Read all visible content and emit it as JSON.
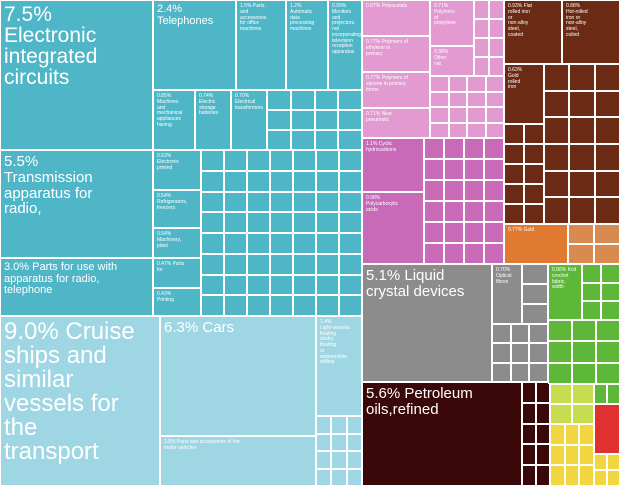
{
  "chart_data": {
    "type": "treemap",
    "title": "",
    "colors": {
      "electronics": "#4fb6c8",
      "electronics_light": "#7fcad8",
      "vehicles": "#9fd6e4",
      "chemicals": "#e39ad0",
      "chemicals_dark": "#c86ab8",
      "minerals_gray": "#8c8c8c",
      "petroleum": "#3a0808",
      "metals": "#6a2a14",
      "gold": "#e07a30",
      "textiles_green": "#5db83a",
      "yellow_green": "#c8dc50",
      "yellow": "#f2d640",
      "red": "#e03030"
    },
    "items": [
      {
        "key": "electronic_ic",
        "pct": 7.5,
        "label": "7.5%\nElectronic\nintegrated\ncircuits",
        "color": "electronics"
      },
      {
        "key": "telephones",
        "pct": 2.4,
        "label": "2.4%\nTelephones",
        "color": "electronics"
      },
      {
        "key": "parts_office",
        "pct": 1.5,
        "label": "1.5% Parts\nand\naccessories\nfor office\nmachines",
        "color": "electronics"
      },
      {
        "key": "auto_data",
        "pct": 1.2,
        "label": "1.2%\nAutomatic\ndata\nprocessing\nmachines",
        "color": "electronics"
      },
      {
        "key": "monitors",
        "pct": 0.99,
        "label": "0.99%\nMonitors\nand\nprojectors,\nnot\nincorporating\ntelevision\nreception\napparatus",
        "color": "electronics"
      },
      {
        "key": "machines_mech",
        "pct": 0.85,
        "label": "0.85%\nMachines\nand\nmechanical\nappliances\nhaving",
        "color": "electronics"
      },
      {
        "key": "electric_storage",
        "pct": 0.74,
        "label": "0.74%\nElectric\nstorage\nbatteries",
        "color": "electronics"
      },
      {
        "key": "electrical_transformers",
        "pct": 0.7,
        "label": "0.70%\nElectrical\ntransformers",
        "color": "electronics"
      },
      {
        "key": "transmission",
        "pct": 5.5,
        "label": "5.5%\nTransmission\napparatus for\nradio,",
        "color": "electronics"
      },
      {
        "key": "electronic_printed",
        "pct": 0.63,
        "label": "0.63%\nElectronic\nprinted",
        "color": "electronics"
      },
      {
        "key": "refrigerators",
        "pct": 0.54,
        "label": "0.54%\nRefrigerators,\nfreezers",
        "color": "electronics"
      },
      {
        "key": "machinery_plant",
        "pct": 0.54,
        "label": "0.54%\nMachinery,\nplant",
        "color": "electronics"
      },
      {
        "key": "parts_for",
        "pct": 0.47,
        "label": "0.47% Parts\nfor",
        "color": "electronics"
      },
      {
        "key": "printing",
        "pct": 0.43,
        "label": "0.43%\nPrinting",
        "color": "electronics"
      },
      {
        "key": "parts_radio",
        "pct": 3.0,
        "label": "3.0% Parts for use with\napparatus for radio,\ntelephone",
        "color": "electronics"
      },
      {
        "key": "cruise_ships",
        "pct": 9.0,
        "label": "9.0% Cruise\nships and\nsimilar\nvessels for\nthe\ntransport",
        "color": "vehicles"
      },
      {
        "key": "cars",
        "pct": 6.3,
        "label": "6.3% Cars",
        "color": "vehicles"
      },
      {
        "key": "light_vessels",
        "pct": 1.4,
        "label": "1.4%\nLight-vessels,\nfloating\ndocks,\nfloating\nor\nsubmersible\ndrilling",
        "color": "vehicles"
      },
      {
        "key": "vehicle_parts",
        "pct": 2.5,
        "label": "2.5% Parts and accessories of the\nmotor vehicles",
        "color": "vehicles"
      },
      {
        "key": "polyacetals",
        "pct": 0.87,
        "label": "0.87% Polyacetals",
        "color": "chemicals"
      },
      {
        "key": "polymers_propylene",
        "pct": 0.71,
        "label": "0.71%\nPolymers\nof\npropylene",
        "color": "chemicals"
      },
      {
        "key": "polymers_ethylene",
        "pct": 0.77,
        "label": "0.77% Polymers of\nethylene in\nprimary",
        "color": "chemicals"
      },
      {
        "key": "other_nat",
        "pct": 0.38,
        "label": "0.38%\nOther\nnat",
        "color": "chemicals"
      },
      {
        "key": "polymers_styrene",
        "pct": 0.77,
        "label": "0.77% Polymers of\nstyrene in primary\nforms",
        "color": "chemicals"
      },
      {
        "key": "new_pneumatic",
        "pct": 0.71,
        "label": "0.71% New\npneumatic",
        "color": "chemicals"
      },
      {
        "key": "cyclic_hydrocarbons",
        "pct": 1.1,
        "label": "1.1% Cyclic\nhydrocarbons",
        "color": "chemicals_dark"
      },
      {
        "key": "polycarboxylic",
        "pct": 0.98,
        "label": "0.98%\nPolycarboxylic\nacids",
        "color": "chemicals_dark"
      },
      {
        "key": "lcd",
        "pct": 5.1,
        "label": "5.1% Liquid\ncrystal devices",
        "color": "minerals_gray"
      },
      {
        "key": "optical_fibres",
        "pct": 0.7,
        "label": "0.70%\nOptical\nfibres",
        "color": "minerals_gray"
      },
      {
        "key": "petroleum",
        "pct": 5.6,
        "label": "5.6% Petroleum\noils,refined",
        "color": "petroleum"
      },
      {
        "key": "flat_rolled",
        "pct": 0.93,
        "label": "0.93% Flat\nrolled iron\nor\nnon-alloy\nsteel,\ncoated",
        "color": "metals"
      },
      {
        "key": "hot_rolled",
        "pct": 0.88,
        "label": "0.88%\nHot-rolled\niron or\nnon-alloy\nsteel,\ncoiled",
        "color": "metals"
      },
      {
        "key": "gold_rolled",
        "pct": 0.63,
        "label": "0.63%\nGold\nrolled\niron",
        "color": "metals"
      },
      {
        "key": "gold",
        "pct": 0.77,
        "label": "0.77% Gold",
        "color": "gold"
      },
      {
        "key": "knit_crochet",
        "pct": 0.66,
        "label": "0.66% Knit\ncrochet\nfabric,\nwidth",
        "color": "textiles_green"
      }
    ]
  }
}
